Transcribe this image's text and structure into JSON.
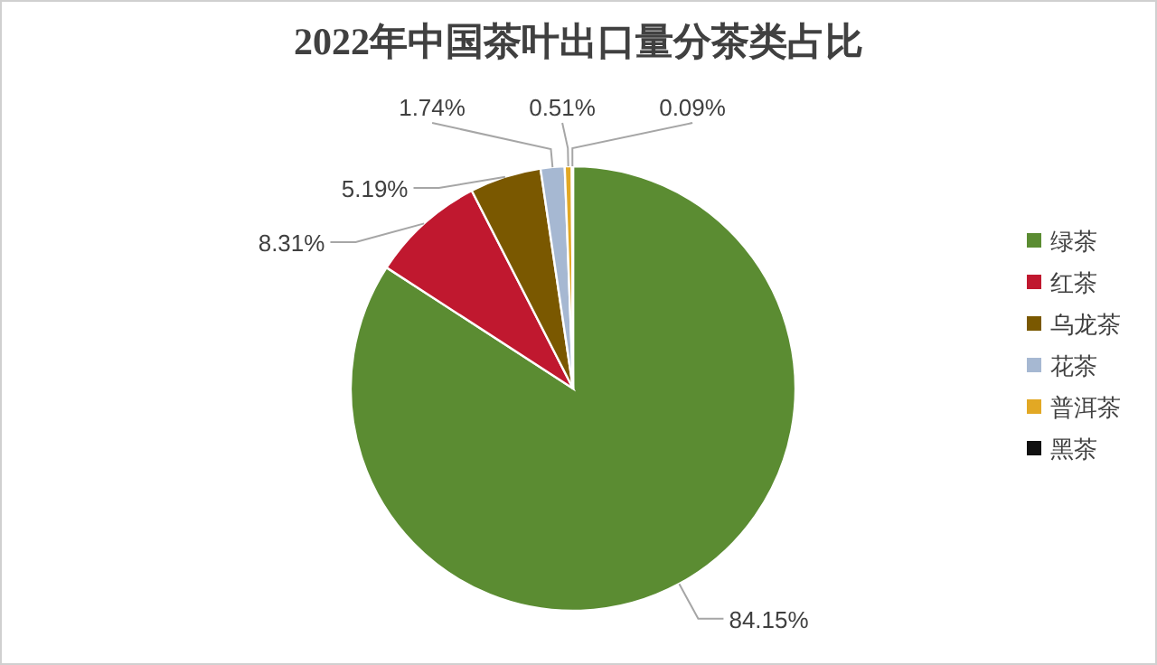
{
  "chart_data": {
    "type": "pie",
    "title": "2022年中国茶叶出口量分茶类占比",
    "categories": [
      "绿茶",
      "红茶",
      "乌龙茶",
      "花茶",
      "普洱茶",
      "黑茶"
    ],
    "values": [
      84.15,
      8.31,
      5.19,
      1.74,
      0.51,
      0.09
    ],
    "colors": [
      "#5b8c32",
      "#c0182f",
      "#7a5800",
      "#a6b8d2",
      "#e2a824",
      "#111111"
    ],
    "data_labels": true,
    "value_labels": [
      "84.15%",
      "8.31%",
      "5.19%",
      "1.74%",
      "0.51%",
      "0.09%"
    ],
    "legend": "right"
  }
}
